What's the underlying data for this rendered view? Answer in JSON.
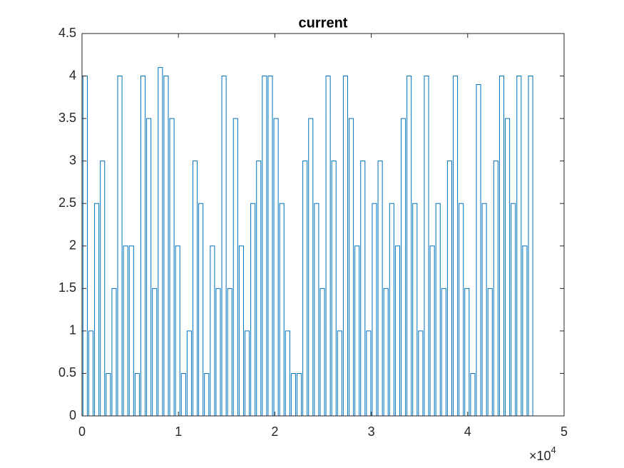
{
  "chart_data": {
    "type": "line",
    "title": "current",
    "x": [
      100,
      100,
      550,
      550,
      700,
      700,
      1150,
      1150,
      1300,
      1300,
      1750,
      1750,
      1900,
      1900,
      2350,
      2350,
      2500,
      2500,
      2950,
      2950,
      3100,
      3100,
      3550,
      3550,
      3700,
      3700,
      4150,
      4150,
      4300,
      4300,
      4750,
      4750,
      4900,
      4900,
      5350,
      5350,
      5500,
      5500,
      5950,
      5950,
      6100,
      6100,
      6550,
      6550,
      6700,
      6700,
      7150,
      7150,
      7300,
      7300,
      7750,
      7750,
      7900,
      7900,
      8350,
      8350,
      8500,
      8500,
      8950,
      8950,
      9100,
      9100,
      9550,
      9550,
      9700,
      9700,
      10150,
      10150,
      10300,
      10300,
      10750,
      10750,
      10900,
      10900,
      11350,
      11350,
      11500,
      11500,
      11950,
      11950,
      12100,
      12100,
      12550,
      12550,
      12700,
      12700,
      13150,
      13150,
      13300,
      13300,
      13750,
      13750,
      13900,
      13900,
      14350,
      14350,
      14500,
      14500,
      14950,
      14950,
      15100,
      15100,
      15550,
      15550,
      15700,
      15700,
      16150,
      16150,
      16300,
      16300,
      16750,
      16750,
      16900,
      16900,
      17350,
      17350,
      17500,
      17500,
      17950,
      17950,
      18100,
      18100,
      18550,
      18550,
      18700,
      18700,
      19150,
      19150,
      19300,
      19300,
      19750,
      19750,
      19900,
      19900,
      20350,
      20350,
      20500,
      20500,
      20950,
      20950,
      21100,
      21100,
      21550,
      21550,
      21700,
      21700,
      22150,
      22150,
      22300,
      22300,
      22750,
      22750,
      22900,
      22900,
      23350,
      23350,
      23500,
      23500,
      23950,
      23950,
      24100,
      24100,
      24550,
      24550,
      24700,
      24700,
      25150,
      25150,
      25300,
      25300,
      25750,
      25750,
      25900,
      25900,
      26350,
      26350,
      26500,
      26500,
      26950,
      26950,
      27100,
      27100,
      27550,
      27550,
      27700,
      27700,
      28150,
      28150,
      28300,
      28300,
      28750,
      28750,
      28900,
      28900,
      29350,
      29350,
      29500,
      29500,
      29950,
      29950,
      30100,
      30100,
      30550,
      30550,
      30700,
      30700,
      31150,
      31150,
      31300,
      31300,
      31750,
      31750,
      31900,
      31900,
      32350,
      32350,
      32500,
      32500,
      32950,
      32950,
      33100,
      33100,
      33550,
      33550,
      33700,
      33700,
      34150,
      34150,
      34300,
      34300,
      34750,
      34750,
      34900,
      34900,
      35350,
      35350,
      35500,
      35500,
      35950,
      35950,
      36100,
      36100,
      36550,
      36550,
      36700,
      36700,
      37150,
      37150,
      37300,
      37300,
      37750,
      37750,
      37900,
      37900,
      38350,
      38350,
      38500,
      38500,
      38950,
      38950,
      39100,
      39100,
      39550,
      39550,
      39700,
      39700,
      40150,
      40150,
      40300,
      40300,
      40750,
      40750,
      40900,
      40900,
      41350,
      41350,
      41500,
      41500,
      41950,
      41950,
      42100,
      42100,
      42550,
      42550,
      42700,
      42700,
      43150,
      43150,
      43300,
      43300,
      43750,
      43750,
      43900,
      43900,
      44350,
      44350,
      44500,
      44500,
      44950,
      44950,
      45100,
      45100,
      45550,
      45550,
      45700,
      45700,
      46150,
      46150,
      46300,
      46300,
      46750,
      46750
    ],
    "values": [
      0,
      4,
      4,
      0,
      0,
      1,
      1,
      0,
      0,
      2.5,
      2.5,
      0,
      0,
      3,
      3,
      0,
      0,
      0.5,
      0.5,
      0,
      0,
      1.5,
      1.5,
      0,
      0,
      4,
      4,
      0,
      0,
      2,
      2,
      0,
      0,
      2,
      2,
      0,
      0,
      0.5,
      0.5,
      0,
      0,
      4,
      4,
      0,
      0,
      3.5,
      3.5,
      0,
      0,
      1.5,
      1.5,
      0,
      0,
      4.1,
      4.1,
      0,
      0,
      4,
      4,
      0,
      0,
      3.5,
      3.5,
      0,
      0,
      2,
      2,
      0,
      0,
      0.5,
      0.5,
      0,
      0,
      1,
      1,
      0,
      0,
      3,
      3,
      0,
      0,
      2.5,
      2.5,
      0,
      0,
      0.5,
      0.5,
      0,
      0,
      2,
      2,
      0,
      0,
      1.5,
      1.5,
      0,
      0,
      4,
      4,
      0,
      0,
      1.5,
      1.5,
      0,
      0,
      3.5,
      3.5,
      0,
      0,
      2,
      2,
      0,
      0,
      1,
      1,
      0,
      0,
      2.5,
      2.5,
      0,
      0,
      3,
      3,
      0,
      0,
      4,
      4,
      0,
      0,
      4,
      4,
      0,
      0,
      3.5,
      3.5,
      0,
      0,
      2.5,
      2.5,
      0,
      0,
      1,
      1,
      0,
      0,
      0.5,
      0.5,
      0,
      0,
      0.5,
      0.5,
      0,
      0,
      3,
      3,
      0,
      0,
      3.5,
      3.5,
      0,
      0,
      2.5,
      2.5,
      0,
      0,
      1.5,
      1.5,
      0,
      0,
      4,
      4,
      0,
      0,
      3,
      3,
      0,
      0,
      1,
      1,
      0,
      0,
      4,
      4,
      0,
      0,
      3.5,
      3.5,
      0,
      0,
      2,
      2,
      0,
      0,
      3,
      3,
      0,
      0,
      1,
      1,
      0,
      0,
      2.5,
      2.5,
      0,
      0,
      3,
      3,
      0,
      0,
      1.5,
      1.5,
      0,
      0,
      2.5,
      2.5,
      0,
      0,
      2,
      2,
      0,
      0,
      3.5,
      3.5,
      0,
      0,
      4,
      4,
      0,
      0,
      2.5,
      2.5,
      0,
      0,
      1,
      1,
      0,
      0,
      4,
      4,
      0,
      0,
      2,
      2,
      0,
      0,
      2.5,
      2.5,
      0,
      0,
      1.5,
      1.5,
      0,
      0,
      3,
      3,
      0,
      0,
      4,
      4,
      0,
      0,
      2.5,
      2.5,
      0,
      0,
      1.5,
      1.5,
      0,
      0,
      0.5,
      0.5,
      0,
      0,
      3.9,
      3.9,
      0,
      0,
      2.5,
      2.5,
      0,
      0,
      1.5,
      1.5,
      0,
      0,
      3,
      3,
      0,
      0,
      4,
      4,
      0,
      0,
      3.5,
      3.5,
      0,
      0,
      2.5,
      2.5,
      0,
      0,
      4,
      4,
      0,
      0,
      2,
      2,
      0,
      0,
      4,
      4,
      0
    ],
    "color": "#0072bd",
    "xlim": [
      0,
      50000
    ],
    "xticks": [
      0,
      {
        "value": 10000,
        "label": "1"
      },
      {
        "value": 20000,
        "label": "2"
      },
      {
        "value": 30000,
        "label": "3"
      },
      {
        "value": 40000,
        "label": "4"
      },
      {
        "value": 50000,
        "label": "5"
      }
    ],
    "x_exponent": {
      "base": "×10",
      "power": "4"
    },
    "ylim": [
      0,
      4.5
    ],
    "yticks": [
      0,
      0.5,
      1,
      1.5,
      2,
      2.5,
      3,
      3.5,
      4,
      4.5
    ],
    "grid": false
  }
}
